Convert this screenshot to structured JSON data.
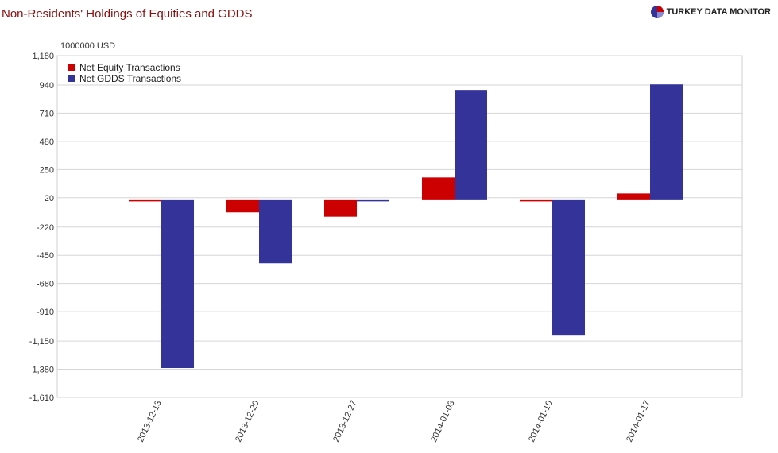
{
  "header": {
    "title": "Non-Residents' Holdings of Equities and GDDS",
    "brand": "TURKEY DATA MONITOR",
    "brand_icon": "pie-logo-icon"
  },
  "chart_data": {
    "type": "bar",
    "title": "Non-Residents' Holdings of Equities and GDDS",
    "unit_label": "1000000 USD",
    "xlabel": "",
    "ylabel": "",
    "categories": [
      "2013-12-13",
      "2013-12-20",
      "2013-12-27",
      "2014-01-03",
      "2014-01-10",
      "2014-01-17"
    ],
    "series": [
      {
        "name": "Net Equity Transactions",
        "color": "#cc0000",
        "values": [
          -10,
          -100,
          -135,
          185,
          -10,
          55
        ]
      },
      {
        "name": "Net GDDS Transactions",
        "color": "#333399",
        "values": [
          -1370,
          -515,
          -5,
          900,
          -1105,
          945
        ]
      }
    ],
    "ylim": [
      -1610,
      1180
    ],
    "yticks": [
      1180,
      940,
      710,
      480,
      250,
      20,
      -220,
      -450,
      -680,
      -910,
      -1150,
      -1380,
      -1610
    ],
    "ytick_labels": [
      "1,180",
      "940",
      "710",
      "480",
      "250",
      "20",
      "-220",
      "-450",
      "-680",
      "-910",
      "-1,150",
      "-1,380",
      "-1,610"
    ],
    "grid": true,
    "legend_position": "top-left"
  }
}
